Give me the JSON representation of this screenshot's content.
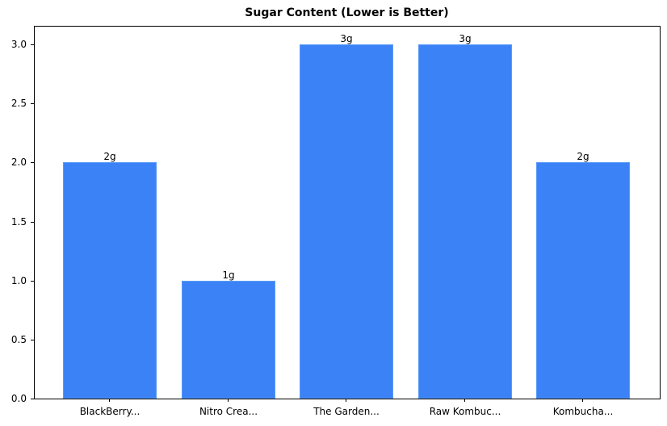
{
  "chart_data": {
    "type": "bar",
    "title": "Sugar Content (Lower is Better)",
    "xlabel": "",
    "ylabel": "",
    "categories": [
      "BlackBerry...",
      "Nitro Crea...",
      "The Garden...",
      "Raw Kombuc...",
      "Kombucha..."
    ],
    "values": [
      2,
      1,
      3,
      3,
      2
    ],
    "value_labels": [
      "2g",
      "1g",
      "3g",
      "3g",
      "2g"
    ],
    "unit": "g",
    "ylim": [
      0,
      3.15
    ],
    "yticks": [
      "0.0",
      "0.5",
      "1.0",
      "1.5",
      "2.0",
      "2.5",
      "3.0"
    ],
    "grid": false,
    "legend": null,
    "bar_color": "#3b82f6"
  }
}
